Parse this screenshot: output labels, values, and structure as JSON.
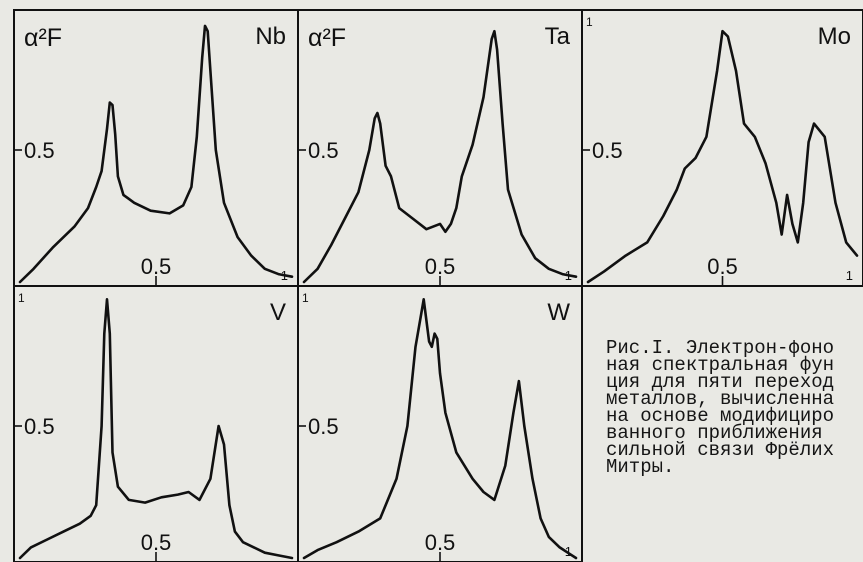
{
  "chart_data": [
    {
      "type": "line",
      "panel_label": "Nb",
      "ylabel": "α²F",
      "ytick_label": "0.5",
      "xtick_labels": [
        "0.5",
        "1"
      ],
      "xlim": [
        0,
        1
      ],
      "ylim": [
        0,
        1
      ],
      "series": [
        {
          "x": [
            0.0,
            0.05,
            0.12,
            0.2,
            0.25,
            0.28,
            0.3,
            0.32,
            0.33,
            0.34,
            0.35,
            0.36,
            0.38,
            0.42,
            0.48,
            0.55,
            0.6,
            0.63,
            0.65,
            0.67,
            0.68,
            0.69,
            0.7,
            0.72,
            0.75,
            0.8,
            0.85,
            0.9,
            0.95,
            1.0
          ],
          "y": [
            0.0,
            0.05,
            0.13,
            0.21,
            0.28,
            0.36,
            0.42,
            0.58,
            0.68,
            0.67,
            0.56,
            0.4,
            0.33,
            0.3,
            0.27,
            0.26,
            0.29,
            0.36,
            0.55,
            0.85,
            0.97,
            0.95,
            0.8,
            0.5,
            0.3,
            0.17,
            0.1,
            0.05,
            0.03,
            0.02
          ]
        }
      ]
    },
    {
      "type": "line",
      "panel_label": "Ta",
      "ylabel": "α²F",
      "ytick_label": "0.5",
      "xtick_labels": [
        "0.5",
        "1"
      ],
      "xlim": [
        0,
        1
      ],
      "ylim": [
        0,
        1
      ],
      "series": [
        {
          "x": [
            0.0,
            0.05,
            0.1,
            0.15,
            0.2,
            0.24,
            0.26,
            0.27,
            0.28,
            0.3,
            0.32,
            0.35,
            0.4,
            0.45,
            0.5,
            0.52,
            0.54,
            0.56,
            0.58,
            0.62,
            0.66,
            0.69,
            0.7,
            0.71,
            0.73,
            0.75,
            0.8,
            0.85,
            0.9,
            0.95,
            1.0
          ],
          "y": [
            0.0,
            0.05,
            0.14,
            0.24,
            0.34,
            0.5,
            0.62,
            0.64,
            0.6,
            0.44,
            0.4,
            0.28,
            0.24,
            0.2,
            0.22,
            0.19,
            0.22,
            0.28,
            0.4,
            0.52,
            0.7,
            0.92,
            0.95,
            0.88,
            0.6,
            0.35,
            0.18,
            0.09,
            0.05,
            0.03,
            0.02
          ]
        }
      ]
    },
    {
      "type": "line",
      "panel_label": "Mo",
      "ytick_label": "0.5",
      "ymax_tick_label": "1",
      "xtick_labels": [
        "0.5",
        "1"
      ],
      "xlim": [
        0,
        1
      ],
      "ylim": [
        0,
        1
      ],
      "series": [
        {
          "x": [
            0.0,
            0.06,
            0.14,
            0.22,
            0.28,
            0.33,
            0.36,
            0.4,
            0.44,
            0.48,
            0.5,
            0.52,
            0.55,
            0.58,
            0.62,
            0.66,
            0.7,
            0.72,
            0.74,
            0.76,
            0.78,
            0.8,
            0.82,
            0.84,
            0.88,
            0.92,
            0.96,
            1.0
          ],
          "y": [
            0.0,
            0.04,
            0.1,
            0.15,
            0.25,
            0.35,
            0.43,
            0.47,
            0.55,
            0.8,
            0.95,
            0.93,
            0.8,
            0.6,
            0.55,
            0.45,
            0.3,
            0.18,
            0.33,
            0.22,
            0.15,
            0.3,
            0.53,
            0.6,
            0.55,
            0.3,
            0.15,
            0.1
          ]
        }
      ]
    },
    {
      "type": "line",
      "panel_label": "V",
      "ytick_label": "0.5",
      "ymax_tick_label": "1",
      "xtick_labels": [
        "0.5"
      ],
      "xlim": [
        0,
        1
      ],
      "ylim": [
        0,
        1
      ],
      "series": [
        {
          "x": [
            0.0,
            0.04,
            0.1,
            0.16,
            0.22,
            0.26,
            0.28,
            0.3,
            0.31,
            0.32,
            0.33,
            0.34,
            0.36,
            0.4,
            0.46,
            0.52,
            0.58,
            0.62,
            0.66,
            0.7,
            0.73,
            0.75,
            0.77,
            0.79,
            0.82,
            0.86,
            0.9,
            0.95,
            1.0
          ],
          "y": [
            0.0,
            0.04,
            0.07,
            0.1,
            0.13,
            0.16,
            0.2,
            0.5,
            0.85,
            0.98,
            0.85,
            0.4,
            0.27,
            0.22,
            0.21,
            0.23,
            0.24,
            0.25,
            0.22,
            0.3,
            0.5,
            0.43,
            0.2,
            0.1,
            0.06,
            0.04,
            0.02,
            0.01,
            0.0
          ]
        }
      ]
    },
    {
      "type": "line",
      "panel_label": "W",
      "ytick_label": "0.5",
      "ymax_tick_label": "1",
      "xtick_labels": [
        "0.5",
        "1"
      ],
      "xlim": [
        0,
        1
      ],
      "ylim": [
        0,
        1
      ],
      "series": [
        {
          "x": [
            0.0,
            0.05,
            0.12,
            0.2,
            0.28,
            0.34,
            0.38,
            0.41,
            0.43,
            0.44,
            0.45,
            0.46,
            0.47,
            0.48,
            0.49,
            0.5,
            0.52,
            0.56,
            0.62,
            0.66,
            0.7,
            0.74,
            0.77,
            0.79,
            0.81,
            0.84,
            0.87,
            0.9,
            0.94,
            0.97,
            1.0
          ],
          "y": [
            0.0,
            0.03,
            0.06,
            0.1,
            0.15,
            0.3,
            0.5,
            0.8,
            0.92,
            0.98,
            0.9,
            0.82,
            0.8,
            0.85,
            0.83,
            0.7,
            0.55,
            0.4,
            0.3,
            0.25,
            0.22,
            0.35,
            0.55,
            0.67,
            0.5,
            0.3,
            0.15,
            0.08,
            0.04,
            0.02,
            0.0
          ]
        }
      ]
    }
  ],
  "caption_lines": [
    "Рис.I. Электрон-фоно",
    "ная спектральная фун",
    "ция для пяти переход",
    "металлов, вычисленна",
    "на основе модифициро",
    "ванного приближения",
    "сильной связи Фрёлих",
    "Митры."
  ],
  "style": {
    "ink": "#111111",
    "paper": "#e9e9e4"
  }
}
